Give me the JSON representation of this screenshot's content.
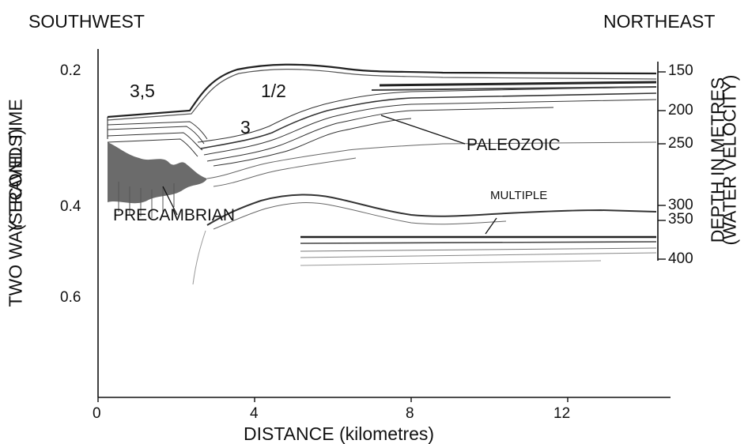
{
  "header": {
    "left": "SOUTHWEST",
    "right": "NORTHEAST"
  },
  "axes": {
    "left_title_line1": "TWO WAY TRAVEL TIME",
    "left_title_line2": "(SECONDS)",
    "right_title_line1": "DEPTH IN METRES",
    "right_title_line2": "(WATER VELOCITY)",
    "bottom_title": "DISTANCE (kilometres)",
    "left_ticks": [
      "0.2",
      "0.4",
      "0.6"
    ],
    "right_ticks": [
      "150",
      "200",
      "250",
      "300",
      "350",
      "400"
    ],
    "bottom_ticks": [
      "0",
      "4",
      "8",
      "12"
    ]
  },
  "annotations": {
    "unit_35": "3,5",
    "unit_12": "1/2",
    "unit_3": "3",
    "paleozoic": "PALEOZOIC",
    "precambrian": "PRECAMBRIAN",
    "multiple": "MULTIPLE"
  },
  "colors": {
    "ink": "#111111",
    "reflector": "#222222",
    "faint": "#9a9a9a"
  }
}
